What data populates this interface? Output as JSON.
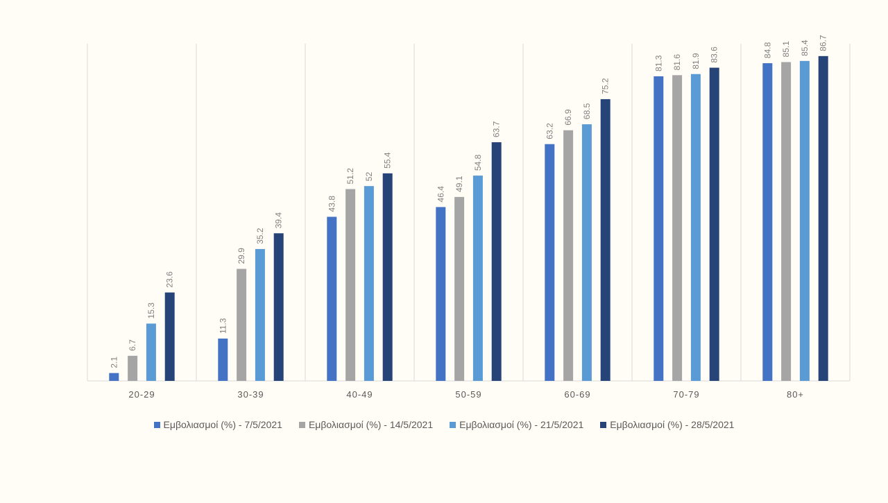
{
  "chart_data": {
    "type": "bar",
    "title": "",
    "xlabel": "",
    "ylabel": "",
    "ylim": [
      0,
      90
    ],
    "grid": "vertical category separators",
    "legend_position": "bottom",
    "categories": [
      "20-29",
      "30-39",
      "40-49",
      "50-59",
      "60-69",
      "70-79",
      "80+"
    ],
    "series": [
      {
        "name": "Εμβολιασμοί (%) - 7/5/2021",
        "color": "#4472c4",
        "values": [
          2.1,
          11.3,
          43.8,
          46.4,
          63.2,
          81.3,
          84.8
        ]
      },
      {
        "name": "Εμβολιασμοί (%) - 14/5/2021",
        "color": "#a5a5a5",
        "values": [
          6.7,
          29.9,
          51.2,
          49.1,
          66.9,
          81.6,
          85.1
        ]
      },
      {
        "name": "Εμβολιασμοί (%) - 21/5/2021",
        "color": "#5b9bd5",
        "values": [
          15.3,
          35.2,
          52,
          54.8,
          68.5,
          81.9,
          85.4
        ]
      },
      {
        "name": "Εμβολιασμοί (%) - 28/5/2021",
        "color": "#264478",
        "values": [
          23.6,
          39.4,
          55.4,
          63.7,
          75.2,
          83.6,
          86.7
        ]
      }
    ]
  }
}
